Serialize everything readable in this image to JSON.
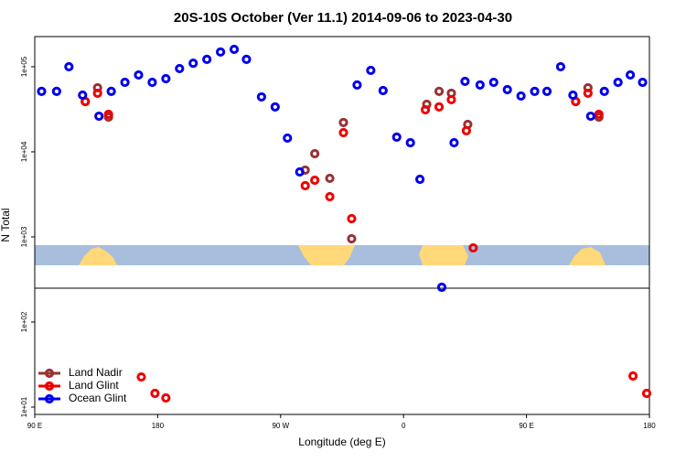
{
  "chart_data": {
    "type": "scatter",
    "title": "20S-10S October (Ver 11.1)   2014-09-06 to 2023-04-30",
    "xlabel": "Longitude (deg E)",
    "ylabel": "N Total",
    "log_y": true,
    "legend": "lower left",
    "xlim": [
      90,
      540
    ],
    "xticks": [
      {
        "value": 90,
        "label": "90 E"
      },
      180,
      {
        "value": 270,
        "label": "90 W"
      },
      {
        "value": 360,
        "label": "0"
      },
      {
        "value": 450,
        "label": "90 E"
      },
      {
        "value": 540,
        "label": "180"
      }
    ],
    "ylim": [
      8.2,
      226000
    ],
    "yticks": [
      {
        "value": 100000,
        "label": "1e+05"
      },
      {
        "value": 10000,
        "label": "1e+04"
      },
      {
        "value": 1000,
        "label": "1e+03"
      },
      {
        "value": 100,
        "label": "1e+02"
      },
      {
        "value": 10,
        "label": "1e+01"
      }
    ],
    "series": [
      {
        "name": "Land Nadir",
        "color": "#993333",
        "x": [
          127,
          136,
          144,
          288,
          295,
          306,
          316,
          322,
          377,
          386,
          395,
          407,
          486,
          495,
          503
        ],
        "values": [
          39000,
          56600,
          25600,
          6100,
          9500,
          4880,
          22100,
          950,
          36200,
          51300,
          48800,
          21000,
          39000,
          56600,
          25600
        ]
      },
      {
        "name": "Land Glint",
        "color": "#ee0000",
        "x": [
          127,
          136,
          144,
          168,
          178,
          186,
          288,
          295,
          306,
          316,
          322,
          376,
          386,
          395,
          406,
          411,
          486,
          495,
          503,
          528,
          538
        ],
        "values": [
          39000,
          48800,
          27600,
          22.6,
          14.5,
          12.8,
          4000,
          4640,
          2970,
          16800,
          1640,
          31200,
          33700,
          41000,
          17700,
          743,
          39000,
          48800,
          27600,
          23.2,
          14.5
        ]
      },
      {
        "name": "Ocean Glint",
        "color": "#0000ee",
        "x": [
          95,
          106,
          115,
          125,
          137,
          146,
          156,
          166,
          176,
          186,
          196,
          206,
          216,
          226,
          236,
          245,
          256,
          266,
          275,
          284,
          326,
          336,
          345,
          355,
          365,
          372,
          388,
          397,
          405,
          416,
          426,
          436,
          446,
          456,
          465,
          475,
          484,
          497,
          507,
          517,
          526,
          535
        ],
        "values": [
          51300,
          51300,
          100000,
          46400,
          26200,
          51300,
          65600,
          80000,
          65600,
          72400,
          95200,
          110000,
          122000,
          149000,
          160000,
          122000,
          44200,
          33700,
          14500,
          5800,
          61000,
          90600,
          52500,
          14900,
          12800,
          4750,
          256,
          12800,
          67300,
          61000,
          65600,
          53800,
          45300,
          51300,
          51300,
          100000,
          46400,
          26200,
          51300,
          65600,
          80000,
          65600
        ]
      }
    ]
  }
}
